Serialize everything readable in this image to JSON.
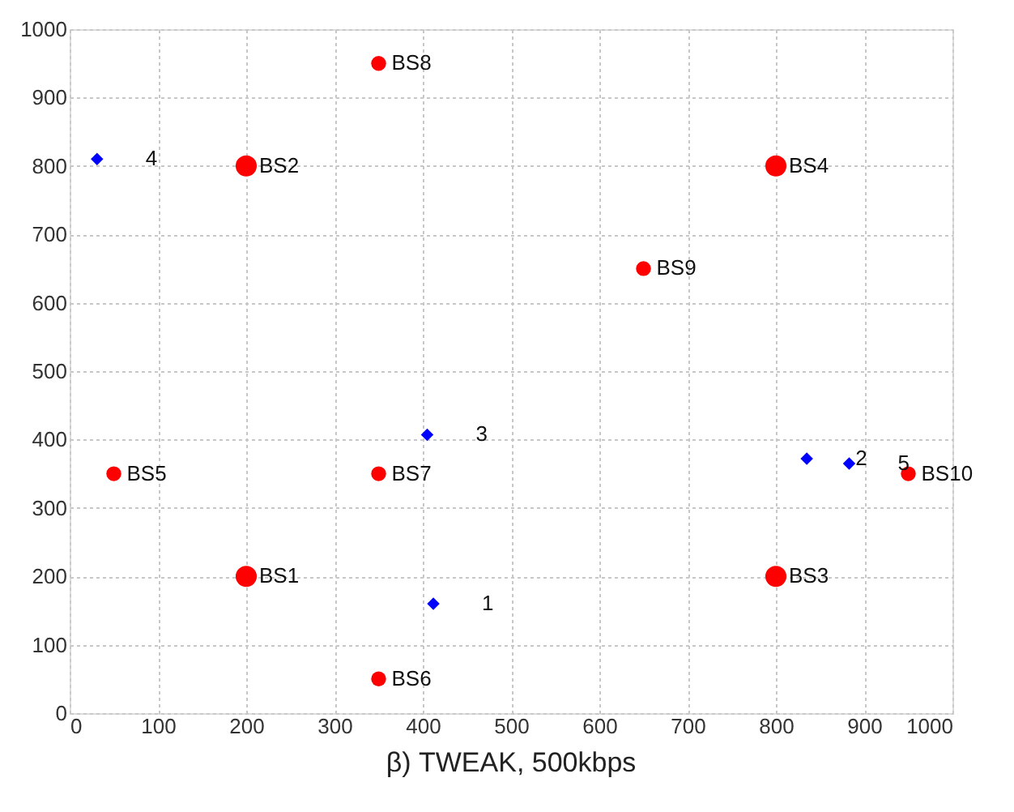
{
  "chart_data": {
    "type": "scatter",
    "title": "β) TWEAK, 500kbps",
    "xlim": [
      0,
      1000
    ],
    "ylim": [
      0,
      1000
    ],
    "xticks": [
      0,
      100,
      200,
      300,
      400,
      500,
      600,
      700,
      800,
      900,
      1000
    ],
    "yticks": [
      0,
      100,
      200,
      300,
      400,
      500,
      600,
      700,
      800,
      900,
      1000
    ],
    "grid": true,
    "series": [
      {
        "type": "bubble",
        "color": "#ff0000",
        "marker": "circle",
        "x": [
          200,
          200,
          800,
          800,
          50,
          350,
          350,
          350,
          650,
          950
        ],
        "values": [
          200,
          800,
          200,
          800,
          350,
          50,
          350,
          950,
          650,
          350
        ],
        "sizes": [
          1,
          1,
          1,
          1,
          0.5,
          0.5,
          0.5,
          0.5,
          0.5,
          0.5
        ]
      },
      {
        "color": "#0000ff",
        "marker": "diamond",
        "x": [
          412,
          835,
          405,
          31,
          883
        ],
        "values": [
          160,
          372,
          407,
          810,
          365
        ]
      }
    ],
    "annotations": [
      {
        "text": "BS1",
        "x": 200,
        "y": 200
      },
      {
        "text": "BS2",
        "x": 200,
        "y": 800
      },
      {
        "text": "BS3",
        "x": 800,
        "y": 200
      },
      {
        "text": "BS4",
        "x": 800,
        "y": 800
      },
      {
        "text": "BS5",
        "x": 50,
        "y": 350
      },
      {
        "text": "BS6",
        "x": 350,
        "y": 50
      },
      {
        "text": "BS7",
        "x": 350,
        "y": 350
      },
      {
        "text": "BS8",
        "x": 350,
        "y": 950
      },
      {
        "text": "BS9",
        "x": 650,
        "y": 650
      },
      {
        "text": "BS10",
        "x": 950,
        "y": 350
      },
      {
        "text": "1",
        "x": 412,
        "y": 160
      },
      {
        "text": "2",
        "x": 835,
        "y": 372
      },
      {
        "text": "3",
        "x": 405,
        "y": 407
      },
      {
        "text": "4",
        "x": 31,
        "y": 810
      },
      {
        "text": "5",
        "x": 883,
        "y": 365
      }
    ]
  }
}
